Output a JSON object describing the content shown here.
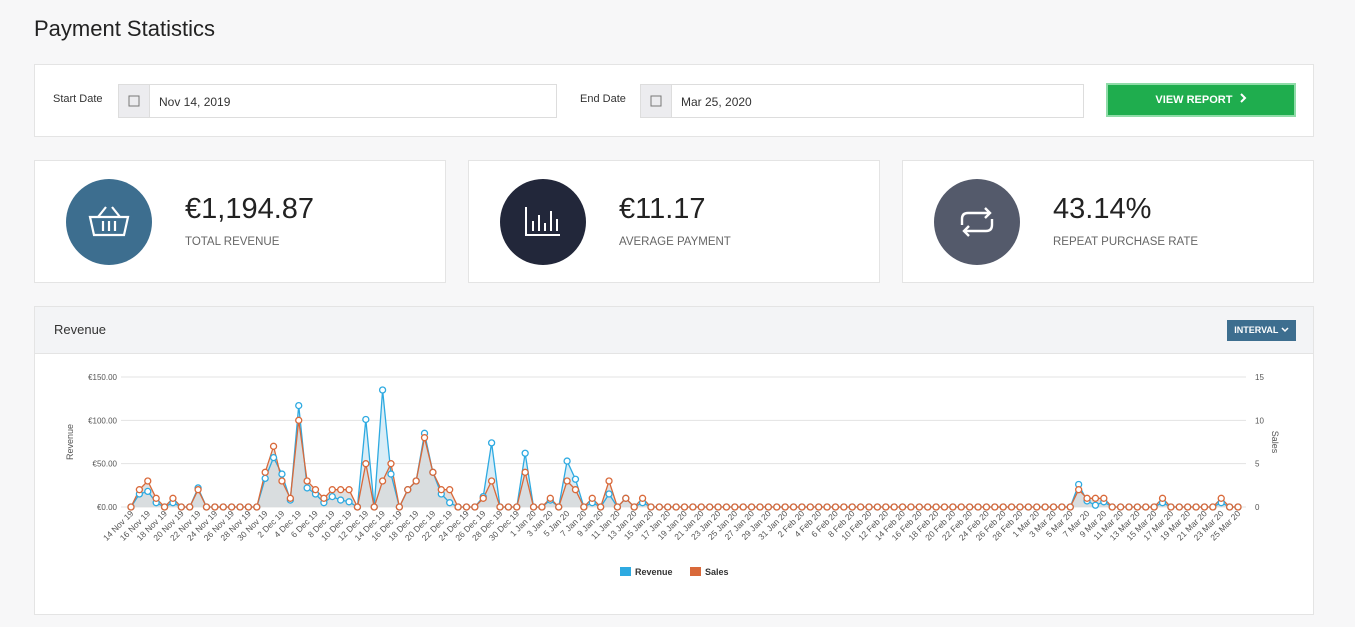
{
  "header": {
    "title": "Payment Statistics"
  },
  "filters": {
    "start_label": "Start Date",
    "start_value": "Nov 14, 2019",
    "end_label": "End Date",
    "end_value": "Mar 25, 2020",
    "button": "VIEW REPORT"
  },
  "stats": [
    {
      "value": "€1,194.87",
      "label": "TOTAL REVENUE"
    },
    {
      "value": "€11.17",
      "label": "AVERAGE PAYMENT"
    },
    {
      "value": "43.14%",
      "label": "REPEAT PURCHASE RATE"
    }
  ],
  "chart_panel": {
    "title": "Revenue",
    "interval_button": "INTERVAL"
  },
  "chart_data": {
    "type": "line",
    "ylabel": "Revenue",
    "y2label": "Sales",
    "categories": [
      "14 Nov 19",
      null,
      "16 Nov 19",
      null,
      "18 Nov 19",
      null,
      "20 Nov 19",
      null,
      "22 Nov 19",
      null,
      "24 Nov 19",
      null,
      "26 Nov 19",
      null,
      "28 Nov 19",
      null,
      "30 Nov 19",
      null,
      "2 Dec 19",
      null,
      "4 Dec 19",
      null,
      "6 Dec 19",
      null,
      "8 Dec 19",
      null,
      "10 Dec 19",
      null,
      "12 Dec 19",
      null,
      "14 Dec 19",
      null,
      "16 Dec 19",
      null,
      "18 Dec 19",
      null,
      "20 Dec 19",
      null,
      "22 Dec 19",
      null,
      "24 Dec 19",
      null,
      "26 Dec 19",
      null,
      "28 Dec 19",
      null,
      "30 Dec 19",
      null,
      "1 Jan 20",
      null,
      "3 Jan 20",
      null,
      "5 Jan 20",
      null,
      "7 Jan 20",
      null,
      "9 Jan 20",
      null,
      "11 Jan 20",
      null,
      "13 Jan 20",
      null,
      "15 Jan 20",
      null,
      "17 Jan 20",
      null,
      "19 Jan 20",
      null,
      "21 Jan 20",
      null,
      "23 Jan 20",
      null,
      "25 Jan 20",
      null,
      "27 Jan 20",
      null,
      "29 Jan 20",
      null,
      "31 Jan 20",
      null,
      "2 Feb 20",
      null,
      "4 Feb 20",
      null,
      "6 Feb 20",
      null,
      "8 Feb 20",
      null,
      "10 Feb 20",
      null,
      "12 Feb 20",
      null,
      "14 Feb 20",
      null,
      "16 Feb 20",
      null,
      "18 Feb 20",
      null,
      "20 Feb 20",
      null,
      "22 Feb 20",
      null,
      "24 Feb 20",
      null,
      "26 Feb 20",
      null,
      "28 Feb 20",
      null,
      "1 Mar 20",
      null,
      "3 Mar 20",
      null,
      "5 Mar 20",
      null,
      "7 Mar 20",
      null,
      "9 Mar 20",
      null,
      "11 Mar 20",
      null,
      "13 Mar 20",
      null,
      "15 Mar 20",
      null,
      "17 Mar 20",
      null,
      "19 Mar 20",
      null,
      "21 Mar 20",
      null,
      "23 Mar 20",
      null,
      "25 Mar 20"
    ],
    "series": [
      {
        "name": "Revenue",
        "color": "#2eaae1",
        "fill": "#cfe9f5",
        "values": [
          0,
          15,
          18,
          5,
          0,
          5,
          0,
          0,
          22,
          0,
          0,
          0,
          0,
          0,
          0,
          0,
          33,
          57,
          38,
          8,
          117,
          22,
          15,
          5,
          12,
          8,
          6,
          0,
          101,
          0,
          135,
          38,
          0,
          20,
          30,
          85,
          40,
          15,
          5,
          0,
          0,
          0,
          12,
          74,
          0,
          0,
          0,
          62,
          0,
          0,
          8,
          0,
          53,
          32,
          0,
          5,
          0,
          15,
          0,
          10,
          0,
          5,
          0,
          0,
          0,
          0,
          0,
          0,
          0,
          0,
          0,
          0,
          0,
          0,
          0,
          0,
          0,
          0,
          0,
          0,
          0,
          0,
          0,
          0,
          0,
          0,
          0,
          0,
          0,
          0,
          0,
          0,
          0,
          0,
          0,
          0,
          0,
          0,
          0,
          0,
          0,
          0,
          0,
          0,
          0,
          0,
          0,
          0,
          0,
          0,
          0,
          0,
          0,
          26,
          7,
          2,
          6,
          0,
          0,
          0,
          0,
          0,
          0,
          5,
          0,
          0,
          0,
          0,
          0,
          0,
          5,
          0,
          0
        ]
      },
      {
        "name": "Sales",
        "color": "#d9693a",
        "fill": "#d8d8d8",
        "axis": "y2",
        "values": [
          0,
          2,
          3,
          1,
          0,
          1,
          0,
          0,
          2,
          0,
          0,
          0,
          0,
          0,
          0,
          0,
          4,
          7,
          3,
          1,
          10,
          3,
          2,
          1,
          2,
          2,
          2,
          0,
          5,
          0,
          3,
          5,
          0,
          2,
          3,
          8,
          4,
          2,
          2,
          0,
          0,
          0,
          1,
          3,
          0,
          0,
          0,
          4,
          0,
          0,
          1,
          0,
          3,
          2,
          0,
          1,
          0,
          3,
          0,
          1,
          0,
          1,
          0,
          0,
          0,
          0,
          0,
          0,
          0,
          0,
          0,
          0,
          0,
          0,
          0,
          0,
          0,
          0,
          0,
          0,
          0,
          0,
          0,
          0,
          0,
          0,
          0,
          0,
          0,
          0,
          0,
          0,
          0,
          0,
          0,
          0,
          0,
          0,
          0,
          0,
          0,
          0,
          0,
          0,
          0,
          0,
          0,
          0,
          0,
          0,
          0,
          0,
          0,
          2,
          1,
          1,
          1,
          0,
          0,
          0,
          0,
          0,
          0,
          1,
          0,
          0,
          0,
          0,
          0,
          0,
          1,
          0,
          0
        ]
      }
    ],
    "ylim": [
      0,
      150
    ],
    "yticks": [
      {
        "value": 0,
        "label": "€0.00"
      },
      {
        "value": 50,
        "label": "€50.00"
      },
      {
        "value": 100,
        "label": "€100.00"
      },
      {
        "value": 150,
        "label": "€150.00"
      }
    ],
    "y2lim": [
      0,
      15
    ],
    "y2ticks": [
      0,
      5,
      10,
      15
    ],
    "grid": true,
    "legend": "bottom"
  }
}
